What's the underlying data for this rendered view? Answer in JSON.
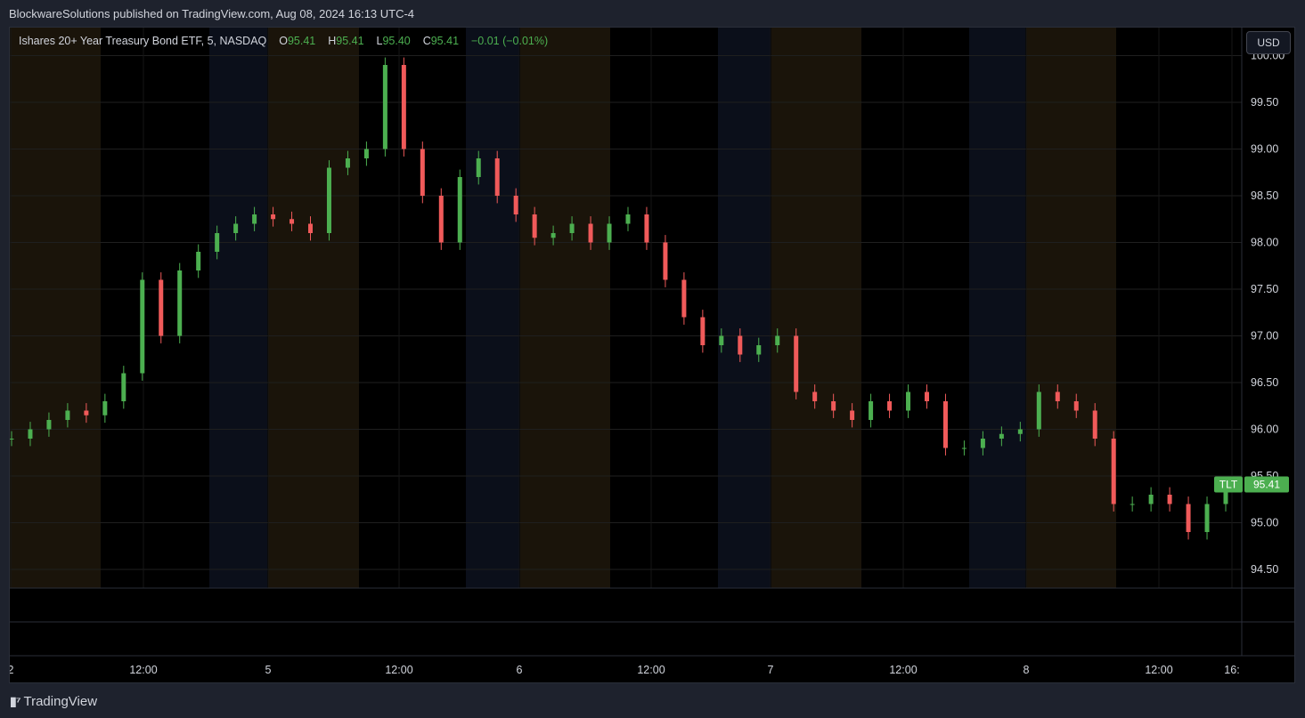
{
  "header": {
    "publisher": "BlockwareSolutions published on TradingView.com, Aug 08, 2024 16:13 UTC-4"
  },
  "legend": {
    "symbol": "Ishares 20+ Year Treasury Bond ETF, 5, NASDAQ",
    "o_label": "O",
    "o_value": "95.41",
    "h_label": "H",
    "h_value": "95.41",
    "l_label": "L",
    "l_value": "95.40",
    "c_label": "C",
    "c_value": "95.41",
    "change": "−0.01 (−0.01%)"
  },
  "currency_button": "USD",
  "price_tag": {
    "ticker": "TLT",
    "value": "95.41"
  },
  "footer": {
    "brand": "TradingView"
  },
  "colors": {
    "up": "#4caf50",
    "down": "#f05a5a",
    "premarket_band": "#1a140a",
    "afterhours_band": "#0b0f1a",
    "grid": "#1e1e1e",
    "price_tag_bg": "#4caf50"
  },
  "chart_data": {
    "type": "line",
    "title": "Ishares 20+ Year Treasury Bond ETF, 5, NASDAQ",
    "ylim": [
      94.3,
      100.3
    ],
    "y_ticks": [
      "100.00",
      "99.50",
      "99.00",
      "98.50",
      "98.00",
      "97.50",
      "97.00",
      "96.50",
      "96.00",
      "95.50",
      "95.00",
      "94.50"
    ],
    "x_ticks": [
      "2",
      "12:00",
      "5",
      "12:00",
      "6",
      "12:00",
      "7",
      "12:00",
      "8",
      "12:00",
      "16:"
    ],
    "grid": true,
    "series": [
      {
        "values": [
          95.9,
          96.0,
          96.1,
          96.2,
          96.15,
          96.3,
          96.6,
          97.6,
          97.0,
          97.7,
          97.9,
          98.1,
          98.2,
          98.3,
          98.25,
          98.2,
          98.1,
          98.8,
          98.9,
          99.0,
          99.9,
          99.0,
          98.5,
          98.0,
          98.7,
          98.9,
          98.5,
          98.3,
          98.05,
          98.1,
          98.2,
          98.0,
          98.2,
          98.3,
          98.0,
          97.6,
          97.2,
          96.9,
          97.0,
          96.8,
          96.9,
          97.0,
          96.4,
          96.3,
          96.2,
          96.1,
          96.3,
          96.2,
          96.4,
          96.3,
          95.8,
          95.8,
          95.9,
          95.95,
          96.0,
          96.4,
          96.3,
          96.2,
          95.9,
          95.2,
          95.2,
          95.3,
          95.2,
          94.9,
          95.2,
          95.41
        ]
      }
    ]
  }
}
